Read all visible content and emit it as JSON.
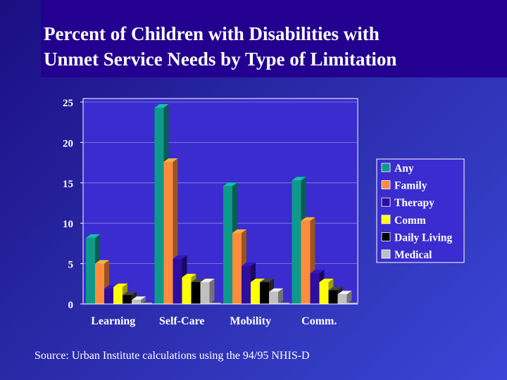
{
  "slide": {
    "title": "Percent of Children with Disabilities with\nUnmet Service Needs by Type of Limitation",
    "source": "Source:  Urban Institute calculations using the 94/95 NHIS-D"
  },
  "colors": {
    "background": "#2a2aa8",
    "title_band": "#23008f",
    "chart_area": "#3a2ccf"
  },
  "chart_data": {
    "type": "bar",
    "categories": [
      "Learning",
      "Self-Care",
      "Mobility",
      "Comm."
    ],
    "series": [
      {
        "name": "Any",
        "color": "#0e9a8a",
        "values": [
          8.2,
          24.3,
          14.6,
          15.3
        ]
      },
      {
        "name": "Family",
        "color": "#ff8c3c",
        "values": [
          5.0,
          17.6,
          8.8,
          10.3
        ]
      },
      {
        "name": "Therapy",
        "color": "#2d0e9e",
        "values": [
          1.9,
          5.6,
          4.7,
          3.8
        ]
      },
      {
        "name": "Comm",
        "color": "#ffff00",
        "values": [
          2.1,
          3.3,
          2.7,
          2.7
        ]
      },
      {
        "name": "Daily Living",
        "color": "#000000",
        "values": [
          1.1,
          2.7,
          2.7,
          1.7
        ]
      },
      {
        "name": "Medical",
        "color": "#c0c0c0",
        "values": [
          0.5,
          2.7,
          1.5,
          1.2
        ]
      }
    ],
    "yticks": [
      0,
      5,
      10,
      15,
      20,
      25
    ],
    "ylim": [
      0,
      25
    ],
    "grid": true,
    "legend_position": "right"
  }
}
